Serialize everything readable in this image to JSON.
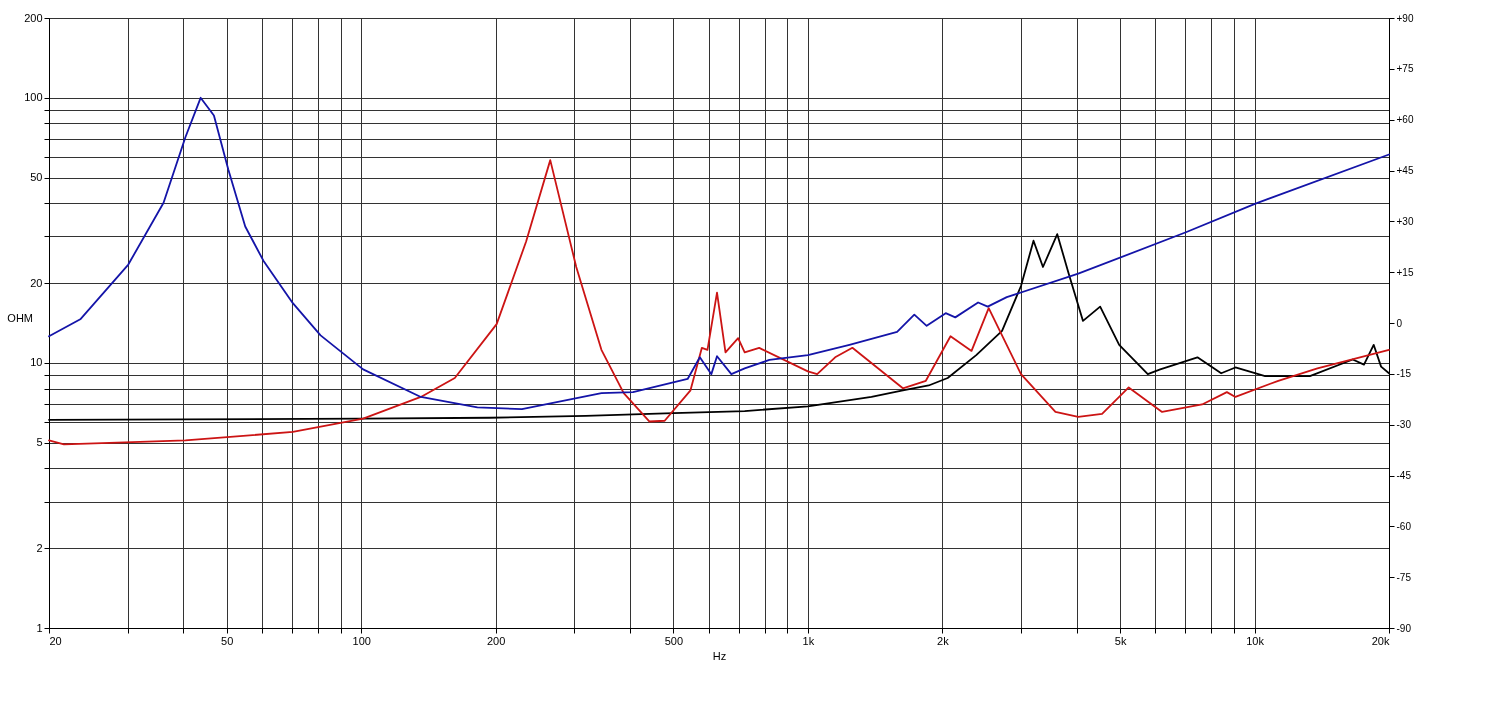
{
  "chart_data": {
    "type": "line",
    "xlabel": "Hz",
    "ylabel": "OHM",
    "log": "xy",
    "grid": true,
    "line_style": "solid",
    "marker": "none",
    "xlim": [
      20,
      20000
    ],
    "ylim": [
      1,
      200
    ],
    "y2lim": [
      -90,
      90
    ],
    "xticks": [
      20,
      {
        "value": 30,
        "label": null
      },
      {
        "value": 40,
        "label": null
      },
      50,
      {
        "value": 60,
        "label": null
      },
      {
        "value": 70,
        "label": null
      },
      {
        "value": 80,
        "label": null
      },
      {
        "value": 90,
        "label": null
      },
      100,
      200,
      {
        "value": 300,
        "label": null
      },
      {
        "value": 400,
        "label": null
      },
      500,
      {
        "value": 600,
        "label": null
      },
      {
        "value": 700,
        "label": null
      },
      {
        "value": 800,
        "label": null
      },
      {
        "value": 900,
        "label": null
      },
      {
        "value": 1000,
        "label": "1k"
      },
      {
        "value": 2000,
        "label": "2k"
      },
      {
        "value": 3000,
        "label": null
      },
      {
        "value": 4000,
        "label": null
      },
      {
        "value": 5000,
        "label": "5k"
      },
      {
        "value": 6000,
        "label": null
      },
      {
        "value": 7000,
        "label": null
      },
      {
        "value": 8000,
        "label": null
      },
      {
        "value": 9000,
        "label": null
      },
      {
        "value": 10000,
        "label": "10k"
      },
      {
        "value": 20000,
        "label": "20k"
      }
    ],
    "yticks": [
      1,
      2,
      {
        "value": 3,
        "label": null
      },
      {
        "value": 4,
        "label": null
      },
      5,
      {
        "value": 6,
        "label": null
      },
      {
        "value": 7,
        "label": null
      },
      {
        "value": 8,
        "label": null
      },
      {
        "value": 9,
        "label": null
      },
      10,
      20,
      {
        "value": 30,
        "label": null
      },
      {
        "value": 40,
        "label": null
      },
      50,
      {
        "value": 60,
        "label": null
      },
      {
        "value": 70,
        "label": null
      },
      {
        "value": 80,
        "label": null
      },
      {
        "value": 90,
        "label": null
      },
      100,
      200
    ],
    "y2ticks": [
      {
        "value": 90,
        "label": "+90"
      },
      {
        "value": 75,
        "label": "+75"
      },
      {
        "value": 60,
        "label": "+60"
      },
      {
        "value": 45,
        "label": "+45"
      },
      {
        "value": 30,
        "label": "+30"
      },
      {
        "value": 15,
        "label": "+15"
      },
      0,
      -15,
      -30,
      -45,
      -60,
      -75,
      -90
    ],
    "series": [
      {
        "color": "#000000",
        "x": [
          20,
          100,
          194,
          318,
          500,
          722,
          1000,
          1388,
          1632,
          1864,
          2056,
          2382,
          2721,
          3000,
          3200,
          3360,
          3617,
          3837,
          4130,
          4512,
          4977,
          5768,
          6150,
          7450,
          8420,
          9061,
          10560,
          13300,
          16590,
          17580,
          18480,
          19200,
          20000
        ],
        "values": [
          6.1,
          6.16,
          6.21,
          6.31,
          6.47,
          6.58,
          6.86,
          7.44,
          7.88,
          8.22,
          8.77,
          10.7,
          13.2,
          19.5,
          28.9,
          23.0,
          30.6,
          21.7,
          14.4,
          16.3,
          11.7,
          9.07,
          9.45,
          10.5,
          9.14,
          9.61,
          8.92,
          8.92,
          10.3,
          9.85,
          11.7,
          9.68,
          9.14
        ]
      },
      {
        "color": "#cc1414",
        "x": [
          20,
          21.6,
          40.4,
          70.3,
          101,
          136,
          162,
          201,
          234,
          265,
          303,
          345,
          387,
          442,
          478,
          546,
          579,
          596,
          626,
          654,
          698,
          722,
          778,
          1000,
          1049,
          1151,
          1258,
          1632,
          1837,
          2086,
          2325,
          2540,
          3000,
          3583,
          4030,
          4557,
          5227,
          6209,
          7631,
          8671,
          9061,
          11300,
          13830,
          20000
        ],
        "values": [
          5.1,
          4.93,
          5.1,
          5.49,
          6.16,
          7.44,
          8.77,
          14.0,
          28.7,
          58.2,
          23.0,
          11.2,
          7.69,
          6.01,
          6.05,
          7.88,
          11.4,
          11.2,
          18.4,
          10.96,
          12.4,
          10.96,
          11.4,
          9.29,
          9.07,
          10.5,
          11.4,
          8.02,
          8.56,
          12.6,
          11.1,
          16.1,
          9.07,
          6.53,
          6.26,
          6.42,
          8.08,
          6.53,
          6.97,
          7.76,
          7.44,
          8.56,
          9.53,
          11.2
        ]
      },
      {
        "color": "#1414a8",
        "x": [
          20,
          23.5,
          30.1,
          36.1,
          40.4,
          43.7,
          46.8,
          50.4,
          55,
          60.4,
          70.3,
          81.1,
          101,
          136,
          182,
          229,
          345,
          406,
          538,
          573,
          608,
          626,
          674,
          722,
          820,
          1000,
          1239,
          1584,
          1731,
          1845,
          2035,
          2138,
          2405,
          2527,
          2788,
          4030,
          7020,
          10050,
          20000
        ],
        "values": [
          12.6,
          14.6,
          23.5,
          40.2,
          71,
          100,
          85.7,
          53.6,
          32.7,
          24.3,
          16.8,
          12.7,
          9.45,
          7.44,
          6.8,
          6.69,
          7.69,
          7.76,
          8.7,
          10.5,
          9.07,
          10.6,
          9.07,
          9.53,
          10.26,
          10.69,
          11.7,
          13.1,
          15.2,
          13.8,
          15.4,
          14.85,
          16.9,
          16.3,
          17.7,
          21.7,
          31.1,
          39.9,
          61.1
        ]
      }
    ]
  }
}
